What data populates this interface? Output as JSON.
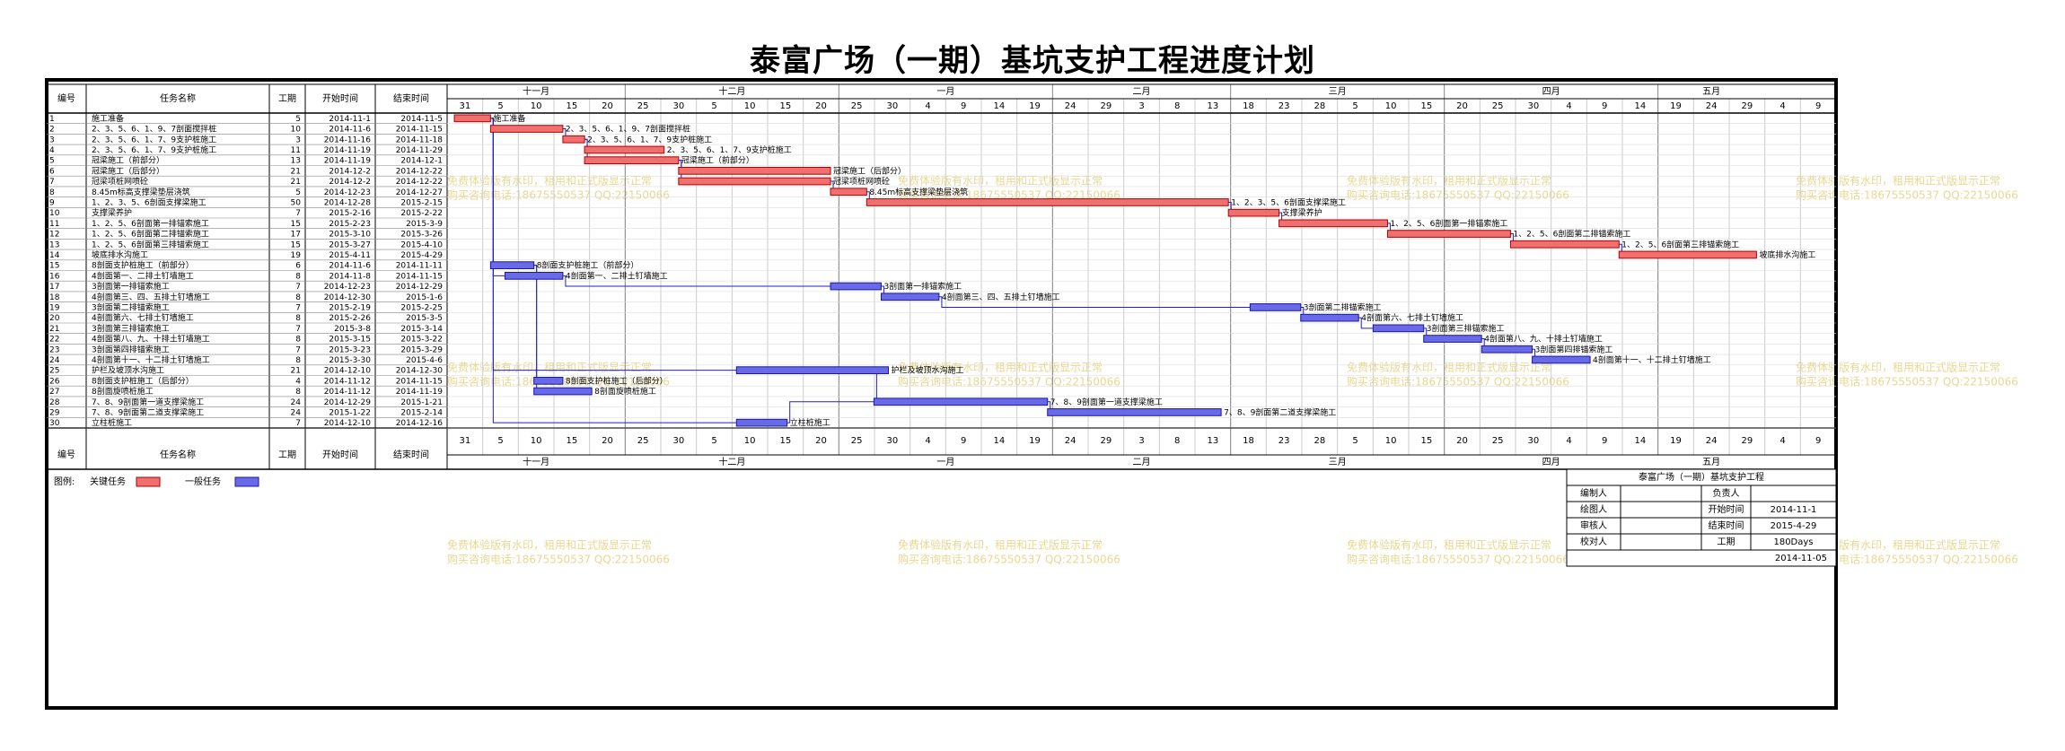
{
  "page_title": "泰富广场（一期）基坑支护工程进度计划",
  "columns": {
    "id": "编号",
    "name": "任务名称",
    "dur": "工期",
    "start": "开始时间",
    "end": "结束时间"
  },
  "months": [
    {
      "label": "十一月",
      "first_tick": 0,
      "span": 5
    },
    {
      "label": "十二月",
      "first_tick": 5,
      "span": 6
    },
    {
      "label": "一月",
      "first_tick": 11,
      "span": 6
    },
    {
      "label": "二月",
      "first_tick": 17,
      "span": 5
    },
    {
      "label": "三月",
      "first_tick": 22,
      "span": 6
    },
    {
      "label": "四月",
      "first_tick": 28,
      "span": 6
    },
    {
      "label": "五月",
      "first_tick": 34,
      "span": 3
    }
  ],
  "day_ticks": [
    "31",
    "5",
    "10",
    "15",
    "20",
    "25",
    "30",
    "5",
    "10",
    "15",
    "20",
    "25",
    "30",
    "4",
    "9",
    "14",
    "19",
    "24",
    "29",
    "3",
    "8",
    "13",
    "18",
    "23",
    "28",
    "5",
    "10",
    "15",
    "20",
    "25",
    "30",
    "4",
    "9",
    "14",
    "19",
    "24",
    "29",
    "4",
    "9"
  ],
  "legend": {
    "label": "图例:",
    "critical": "关键任务",
    "normal": "一般任务",
    "critical_color": "#f07070",
    "normal_color": "#6a6ae8"
  },
  "watermark": {
    "line1": "免费体验版有水印，租用和正式版显示正常",
    "line2": "购买咨询电话:18675550537 QQ:22150066",
    "color": "#e8d890"
  },
  "info_box": {
    "title": "泰富广场（一期）基坑支护工程",
    "rows": [
      [
        "编制人",
        "",
        "负责人",
        ""
      ],
      [
        "绘图人",
        "",
        "开始时间",
        "2014-11-1"
      ],
      [
        "审核人",
        "",
        "结束时间",
        "2015-4-29"
      ],
      [
        "校对人",
        "",
        "工期",
        "180Days"
      ]
    ],
    "date": "2014-11-05"
  },
  "chart_data": {
    "type": "gantt",
    "time_axis": {
      "start": "2014-10-31",
      "end": "2015-05-11"
    },
    "tasks": [
      {
        "id": "1",
        "name": "施工准备",
        "duration": 5,
        "start": "2014-11-1",
        "end": "2014-11-5",
        "critical": true
      },
      {
        "id": "2",
        "name": "2、3、5、6、1、9、7剖面搅拌桩",
        "duration": 10,
        "start": "2014-11-6",
        "end": "2014-11-15",
        "critical": true
      },
      {
        "id": "3",
        "name": "2、3、5、6、1、7、9支护桩施工",
        "duration": 3,
        "start": "2014-11-16",
        "end": "2014-11-18",
        "critical": true
      },
      {
        "id": "4",
        "name": "2、3、5、6、1、7、9支护桩施工",
        "duration": 11,
        "start": "2014-11-19",
        "end": "2014-11-29",
        "critical": true
      },
      {
        "id": "5",
        "name": "冠梁施工（前部分）",
        "duration": 13,
        "start": "2014-11-19",
        "end": "2014-12-1",
        "critical": true
      },
      {
        "id": "6",
        "name": "冠梁施工（后部分）",
        "duration": 21,
        "start": "2014-12-2",
        "end": "2014-12-22",
        "critical": true
      },
      {
        "id": "7",
        "name": "冠梁项桩网喷砼",
        "duration": 21,
        "start": "2014-12-2",
        "end": "2014-12-22",
        "critical": true
      },
      {
        "id": "8",
        "name": "8.45m标高支撑梁垫层浇筑",
        "duration": 5,
        "start": "2014-12-23",
        "end": "2014-12-27",
        "critical": true
      },
      {
        "id": "9",
        "name": "1、2、3、5、6剖面支撑梁施工",
        "duration": 50,
        "start": "2014-12-28",
        "end": "2015-2-15",
        "critical": true
      },
      {
        "id": "10",
        "name": "支撑梁养护",
        "duration": 7,
        "start": "2015-2-16",
        "end": "2015-2-22",
        "critical": true
      },
      {
        "id": "11",
        "name": "1、2、5、6剖面第一排锚索施工",
        "duration": 15,
        "start": "2015-2-23",
        "end": "2015-3-9",
        "critical": true
      },
      {
        "id": "12",
        "name": "1、2、5、6剖面第二排锚索施工",
        "duration": 17,
        "start": "2015-3-10",
        "end": "2015-3-26",
        "critical": true
      },
      {
        "id": "13",
        "name": "1、2、5、6剖面第三排锚索施工",
        "duration": 15,
        "start": "2015-3-27",
        "end": "2015-4-10",
        "critical": true
      },
      {
        "id": "14",
        "name": "坡底排水沟施工",
        "duration": 19,
        "start": "2015-4-11",
        "end": "2015-4-29",
        "critical": true
      },
      {
        "id": "15",
        "name": "8剖面支护桩施工（前部分）",
        "duration": 6,
        "start": "2014-11-6",
        "end": "2014-11-11",
        "critical": false
      },
      {
        "id": "16",
        "name": "4剖面第一、二排土钉墙施工",
        "duration": 8,
        "start": "2014-11-8",
        "end": "2014-11-15",
        "critical": false
      },
      {
        "id": "17",
        "name": "3剖面第一排锚索施工",
        "duration": 7,
        "start": "2014-12-23",
        "end": "2014-12-29",
        "critical": false
      },
      {
        "id": "18",
        "name": "4剖面第三、四、五排土钉墙施工",
        "duration": 8,
        "start": "2014-12-30",
        "end": "2015-1-6",
        "critical": false
      },
      {
        "id": "19",
        "name": "3剖面第二排锚索施工",
        "duration": 7,
        "start": "2015-2-19",
        "end": "2015-2-25",
        "critical": false
      },
      {
        "id": "20",
        "name": "4剖面第六、七排土钉墙施工",
        "duration": 8,
        "start": "2015-2-26",
        "end": "2015-3-5",
        "critical": false
      },
      {
        "id": "21",
        "name": "3剖面第三排锚索施工",
        "duration": 7,
        "start": "2015-3-8",
        "end": "2015-3-14",
        "critical": false
      },
      {
        "id": "22",
        "name": "4剖面第八、九、十排土钉墙施工",
        "duration": 8,
        "start": "2015-3-15",
        "end": "2015-3-22",
        "critical": false
      },
      {
        "id": "23",
        "name": "3剖面第四排锚索施工",
        "duration": 7,
        "start": "2015-3-23",
        "end": "2015-3-29",
        "critical": false
      },
      {
        "id": "24",
        "name": "4剖面第十一、十二排土钉墙施工",
        "duration": 8,
        "start": "2015-3-30",
        "end": "2015-4-6",
        "critical": false
      },
      {
        "id": "25",
        "name": "护栏及坡顶水沟施工",
        "duration": 21,
        "start": "2014-12-10",
        "end": "2014-12-30",
        "critical": false
      },
      {
        "id": "26",
        "name": "8剖面支护桩施工（后部分）",
        "duration": 4,
        "start": "2014-11-12",
        "end": "2014-11-15",
        "critical": false
      },
      {
        "id": "27",
        "name": "8剖面旋喷桩施工",
        "duration": 8,
        "start": "2014-11-12",
        "end": "2014-11-19",
        "critical": false
      },
      {
        "id": "28",
        "name": "7、8、9剖面第一道支撑梁施工",
        "duration": 24,
        "start": "2014-12-29",
        "end": "2015-1-21",
        "critical": false
      },
      {
        "id": "29",
        "name": "7、8、9剖面第二道支撑梁施工",
        "duration": 24,
        "start": "2015-1-22",
        "end": "2015-2-14",
        "critical": false
      },
      {
        "id": "30",
        "name": "立柱桩施工",
        "duration": 7,
        "start": "2014-12-10",
        "end": "2014-12-16",
        "critical": false
      }
    ],
    "links": [
      [
        1,
        2
      ],
      [
        2,
        3
      ],
      [
        3,
        4
      ],
      [
        3,
        5
      ],
      [
        5,
        6
      ],
      [
        5,
        7
      ],
      [
        7,
        8
      ],
      [
        8,
        9
      ],
      [
        9,
        10
      ],
      [
        10,
        11
      ],
      [
        11,
        12
      ],
      [
        12,
        13
      ],
      [
        13,
        14
      ],
      [
        1,
        15
      ],
      [
        1,
        16
      ],
      [
        16,
        17
      ],
      [
        17,
        18
      ],
      [
        18,
        19
      ],
      [
        19,
        20
      ],
      [
        20,
        21
      ],
      [
        21,
        22
      ],
      [
        22,
        23
      ],
      [
        23,
        24
      ],
      [
        1,
        25
      ],
      [
        15,
        26
      ],
      [
        15,
        27
      ],
      [
        25,
        28
      ],
      [
        28,
        29
      ],
      [
        1,
        30
      ],
      [
        30,
        28
      ]
    ]
  }
}
